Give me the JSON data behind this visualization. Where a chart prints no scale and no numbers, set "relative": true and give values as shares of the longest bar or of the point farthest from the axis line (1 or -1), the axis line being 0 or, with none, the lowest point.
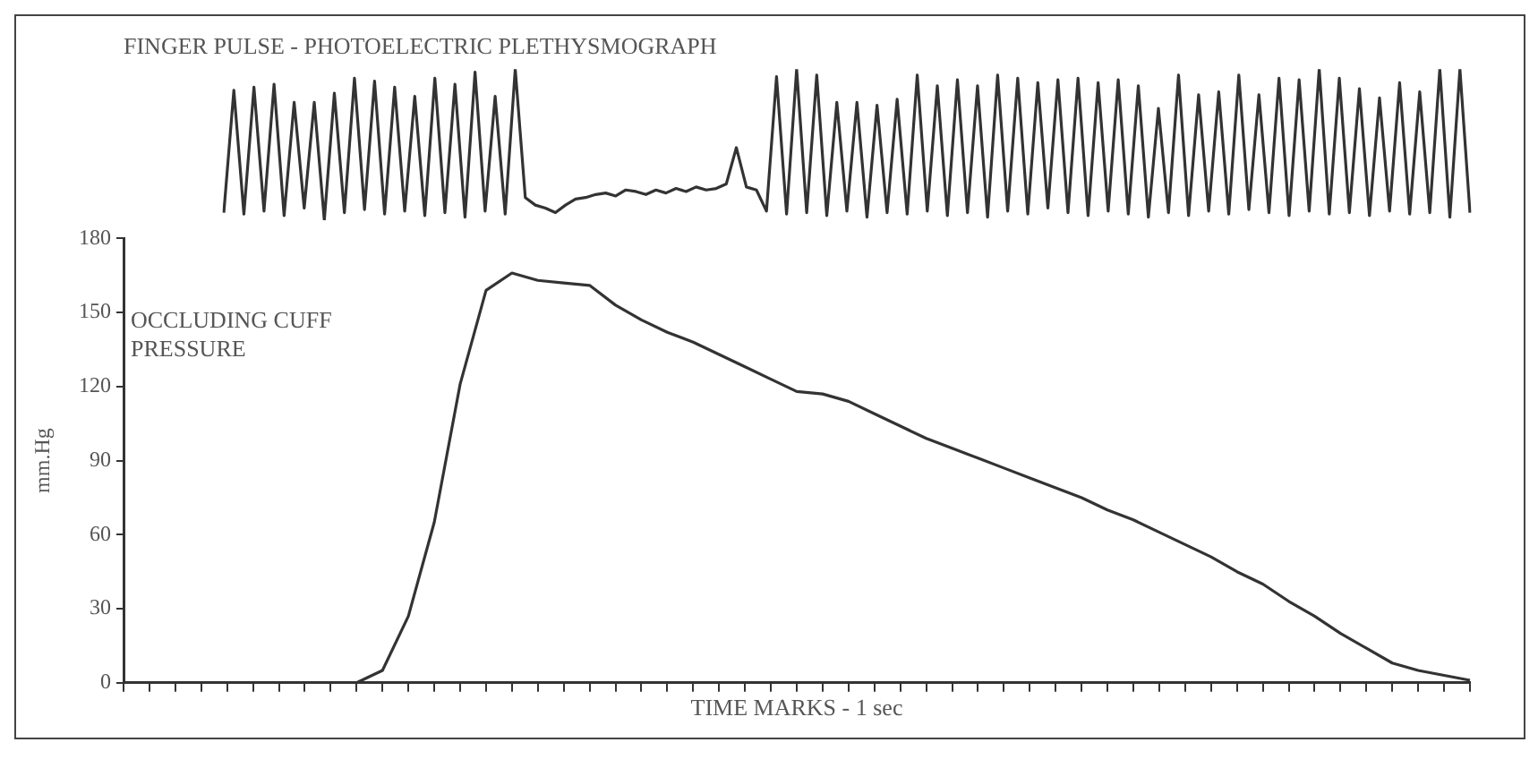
{
  "chart_data": [
    {
      "type": "line",
      "title": "FINGER PULSE - PHOTOELECTRIC PLETHYSMOGRAPH",
      "relative": true,
      "tick_labels": false,
      "grid": false,
      "marker": "none",
      "categories": [
        null,
        null,
        null,
        null,
        null,
        null,
        null,
        null,
        null,
        null,
        null,
        null,
        null,
        null,
        null,
        null,
        null,
        null,
        null,
        null,
        null,
        null,
        null,
        null,
        null,
        null,
        null,
        null,
        null,
        null,
        null,
        null,
        null,
        null,
        null,
        null,
        null,
        null,
        null,
        null,
        null,
        null,
        null,
        null,
        null,
        null,
        null,
        null,
        null,
        null,
        null,
        null,
        null,
        null,
        null,
        null,
        null,
        null,
        null,
        null,
        null,
        null,
        null,
        null,
        null,
        null,
        null,
        null,
        null,
        null,
        null,
        null,
        null,
        null,
        null,
        null,
        null,
        null,
        null,
        null,
        null,
        null,
        null,
        null,
        null,
        null,
        null,
        null,
        null,
        null,
        null,
        null,
        null,
        null,
        null,
        null,
        null,
        null,
        null,
        null,
        null,
        null,
        null,
        null,
        null,
        null,
        null,
        null,
        null,
        null,
        null,
        null,
        null,
        null,
        null,
        null,
        null,
        null,
        null,
        null,
        null,
        null,
        null,
        null,
        null
      ],
      "series": [
        {
          "color": "#333333",
          "values": [
            0.05,
            0.86,
            0.04,
            0.88,
            0.06,
            0.9,
            0.03,
            0.78,
            0.08,
            0.78,
            0,
            0.84,
            0.05,
            0.94,
            0.07,
            0.92,
            0.04,
            0.88,
            0.06,
            0.82,
            0.03,
            0.94,
            0.05,
            0.9,
            0.02,
            0.98,
            0.06,
            0.82,
            0.04,
            1,
            0.15,
            0.1,
            0.08,
            0.05,
            0.1,
            0.14,
            0.15,
            0.17,
            0.18,
            0.16,
            0.2,
            0.19,
            0.17,
            0.2,
            0.18,
            0.21,
            0.19,
            0.22,
            0.2,
            0.21,
            0.24,
            0.48,
            0.22,
            0.2,
            0.06,
            0.95,
            0.04,
            1,
            0.05,
            0.96,
            0.03,
            0.78,
            0.06,
            0.78,
            0.02,
            0.76,
            0.05,
            0.8,
            0.04,
            0.96,
            0.06,
            0.89,
            0.03,
            0.93,
            0.05,
            0.89,
            0.02,
            0.96,
            0.06,
            0.94,
            0.04,
            0.91,
            0.08,
            0.93,
            0.05,
            0.94,
            0.03,
            0.91,
            0.06,
            0.93,
            0.04,
            0.89,
            0.02,
            0.74,
            0.05,
            0.96,
            0.03,
            0.83,
            0.06,
            0.85,
            0.04,
            0.96,
            0.07,
            0.83,
            0.05,
            0.94,
            0.03,
            0.93,
            0.06,
            1,
            0.04,
            0.94,
            0.05,
            0.87,
            0.03,
            0.81,
            0.06,
            0.91,
            0.04,
            0.85,
            0.05,
            1,
            0.02,
            1,
            0.05
          ]
        }
      ]
    },
    {
      "type": "line",
      "xlabel": "TIME MARKS - 1 sec",
      "ylabel": "mm.Hg",
      "annotations": [
        "OCCLUDING CUFF PRESSURE"
      ],
      "tick_labels": "y",
      "grid": false,
      "marker": "none",
      "categories": [
        null,
        null,
        null,
        null,
        null,
        null,
        null,
        null,
        null,
        null,
        null,
        null,
        null,
        null,
        null,
        null,
        null,
        null,
        null,
        null,
        null,
        null,
        null,
        null,
        null,
        null,
        null,
        null,
        null,
        null,
        null,
        null,
        null,
        null,
        null,
        null,
        null,
        null,
        null,
        null,
        null,
        null,
        null,
        null,
        null,
        null,
        null,
        null,
        null,
        null,
        null,
        null,
        null
      ],
      "ylim": [
        0,
        180
      ],
      "yticks": [
        0,
        30,
        60,
        90,
        120,
        150,
        180
      ],
      "series": [
        {
          "color": "#333333",
          "values": [
            0,
            0,
            0,
            0,
            0,
            0,
            0,
            0,
            0,
            0,
            5,
            27,
            65,
            121,
            159,
            166,
            163,
            162,
            161,
            153,
            147,
            142,
            138,
            133,
            128,
            123,
            118,
            117,
            114,
            109,
            104,
            99,
            95,
            91,
            87,
            83,
            79,
            75,
            70,
            66,
            61,
            56,
            51,
            45,
            40,
            33,
            27,
            20,
            14,
            8,
            5,
            3,
            1
          ]
        }
      ]
    }
  ]
}
